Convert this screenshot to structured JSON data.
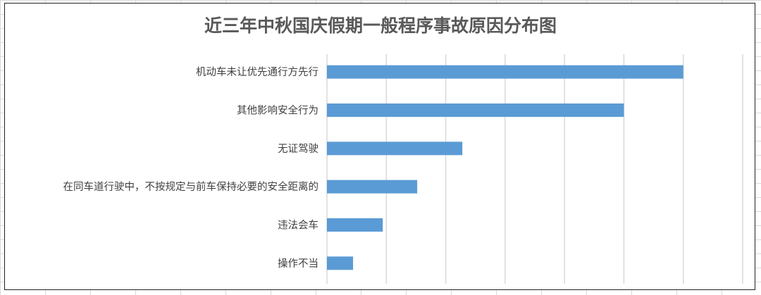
{
  "chart_data": {
    "type": "bar",
    "orientation": "horizontal",
    "title": "近三年中秋国庆假期一般程序事故原因分布图",
    "categories": [
      "机动车未让优先通行方先行",
      "其他影响安全行为",
      "无证驾驶",
      "在同车道行驶中，不按规定与前车保持必要的安全距离的",
      "违法会车",
      "操作不当"
    ],
    "values": [
      30,
      25,
      11.4,
      7.6,
      4.7,
      2.2
    ],
    "xlim": [
      0,
      35
    ],
    "grid": true,
    "bar_color": "#5b9bd5",
    "grid_color": "#d9d9d9"
  }
}
